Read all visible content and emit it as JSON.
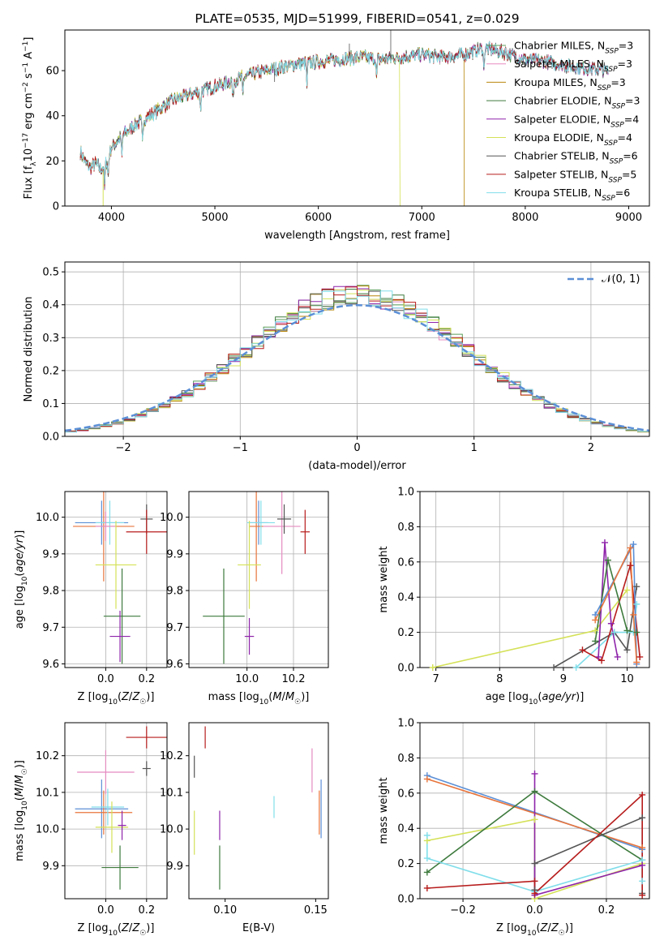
{
  "chart_data": [
    {
      "id": "spectrum",
      "type": "line",
      "title": "PLATE=0535, MJD=51999, FIBERID=0541, z=0.029",
      "xlabel": "wavelength [Angstrom, rest frame]",
      "ylabel": "Flux [f_λ 10^-17 erg cm^-2 s^-1 A^-1]",
      "xlim": [
        3550,
        9200
      ],
      "ylim": [
        0,
        78
      ],
      "xticks": [
        4000,
        5000,
        6000,
        7000,
        8000,
        9000
      ],
      "yticks": [
        0,
        20,
        40,
        60
      ],
      "grid": false,
      "legend_position": "right",
      "continuum": {
        "x": [
          3700,
          3750,
          3800,
          3850,
          3900,
          3950,
          4000,
          4100,
          4200,
          4300,
          4400,
          4500,
          4600,
          4800,
          5000,
          5200,
          5400,
          5600,
          5800,
          6000,
          6200,
          6400,
          6600,
          6800,
          7000,
          7200,
          7400,
          7600,
          7800,
          8000,
          8200,
          8400,
          8600,
          8800
        ],
        "y": [
          24,
          19,
          17,
          19,
          16,
          19,
          26,
          31,
          35,
          38,
          41,
          44,
          47,
          50,
          53,
          56,
          59,
          61,
          63,
          64,
          65,
          66,
          65,
          66,
          67,
          66,
          67,
          70,
          68,
          65,
          64,
          62,
          61,
          60
        ]
      },
      "series": [
        {
          "name": "Chabrier MILES, N_SSP=3",
          "label_main": "Chabrier MILES, N",
          "label_sub": "SSP",
          "label_tail": "=3",
          "color": "#5a9e5a",
          "cut": null
        },
        {
          "name": "Salpeter MILES, N_SSP=3",
          "label_main": "Salpeter MILES, N",
          "label_sub": "SSP",
          "label_tail": "=3",
          "color": "#e58bc0",
          "cut": null
        },
        {
          "name": "Kroupa MILES, N_SSP=3",
          "label_main": "Kroupa MILES, N",
          "label_sub": "SSP",
          "label_tail": "=3",
          "color": "#b8860b",
          "cut": 7410
        },
        {
          "name": "Chabrier ELODIE, N_SSP=3",
          "label_main": "Chabrier ELODIE, N",
          "label_sub": "SSP",
          "label_tail": "=3",
          "color": "#3d7a3d",
          "cut": null
        },
        {
          "name": "Salpeter ELODIE, N_SSP=4",
          "label_main": "Salpeter ELODIE, N",
          "label_sub": "SSP",
          "label_tail": "=4",
          "color": "#8e24aa",
          "cut": null
        },
        {
          "name": "Kroupa ELODIE, N_SSP=4",
          "label_main": "Kroupa ELODIE, N",
          "label_sub": "SSP",
          "label_tail": "=4",
          "color": "#d4e157",
          "cut": 6790
        },
        {
          "name": "Chabrier STELIB, N_SSP=6",
          "label_main": "Chabrier STELIB, N",
          "label_sub": "SSP",
          "label_tail": "=6",
          "color": "#555555",
          "cut": null
        },
        {
          "name": "Salpeter STELIB, N_SSP=5",
          "label_main": "Salpeter STELIB, N",
          "label_sub": "SSP",
          "label_tail": "=5",
          "color": "#b71c1c",
          "cut": null
        },
        {
          "name": "Kroupa STELIB, N_SSP=6",
          "label_main": "Kroupa STELIB, N",
          "label_sub": "SSP",
          "label_tail": "=6",
          "color": "#80deea",
          "cut": null
        }
      ]
    },
    {
      "id": "residuals",
      "type": "histogram",
      "xlabel": "(data-model)/error",
      "ylabel": "Normed distribution",
      "xlim": [
        -2.5,
        2.5
      ],
      "ylim": [
        0,
        0.53
      ],
      "xticks": [
        -2,
        -1,
        0,
        1,
        2
      ],
      "yticks": [
        0.0,
        0.1,
        0.2,
        0.3,
        0.4,
        0.5
      ],
      "grid": true,
      "legend_position": "top-right",
      "legend": "𝒩(0, 1)",
      "bin_width": 0.1,
      "colors": [
        "#5a9e5a",
        "#e58bc0",
        "#b8860b",
        "#3d7a3d",
        "#8e24aa",
        "#d4e157",
        "#555555",
        "#b71c1c",
        "#80deea"
      ],
      "normal_curve": {
        "mean": 0,
        "sigma": 1,
        "color": "#5b8fd6"
      }
    },
    {
      "id": "age-vs-Z",
      "type": "errorbar",
      "xlabel": "Z [log10(Z/Z☉)]",
      "ylabel": "age [log10(age/yr)]",
      "xlim": [
        -0.2,
        0.3
      ],
      "ylim": [
        9.59,
        10.07
      ],
      "xticks": [
        0.0,
        0.2
      ],
      "yticks": [
        9.6,
        9.7,
        9.8,
        9.9,
        10.0
      ],
      "grid": true,
      "points": [
        {
          "x": -0.02,
          "xerr": 0.13,
          "y": 9.985,
          "yerr": 0.06,
          "color": "#5b8fd6"
        },
        {
          "x": -0.01,
          "xerr": 0.15,
          "y": 9.975,
          "yerr": 0.15,
          "color": "#e8743b"
        },
        {
          "x": 0.02,
          "xerr": 0.07,
          "y": 9.985,
          "yerr": 0.06,
          "color": "#80deea"
        },
        {
          "x": 0.0,
          "xerr": 0.05,
          "y": 9.975,
          "yerr": 0.04,
          "color": "#e58bc0"
        },
        {
          "x": 0.05,
          "xerr": 0.1,
          "y": 9.87,
          "yerr": 0.12,
          "color": "#d4e157"
        },
        {
          "x": 0.08,
          "xerr": 0.09,
          "y": 9.73,
          "yerr": 0.13,
          "color": "#3d7a3d"
        },
        {
          "x": 0.07,
          "xerr": 0.05,
          "y": 9.675,
          "yerr": 0.07,
          "color": "#8e24aa"
        },
        {
          "x": 0.2,
          "xerr": 0.03,
          "y": 9.995,
          "yerr": 0.04,
          "color": "#555555"
        },
        {
          "x": 0.2,
          "xerr": 0.1,
          "y": 9.96,
          "yerr": 0.06,
          "color": "#b71c1c"
        }
      ]
    },
    {
      "id": "age-vs-mass",
      "type": "errorbar",
      "xlabel": "mass [log10(M/M☉)]",
      "ylabel": "",
      "xlim": [
        9.75,
        10.35
      ],
      "ylim": [
        9.59,
        10.07
      ],
      "xticks": [
        10.0,
        10.2
      ],
      "yticks": [
        9.6,
        9.7,
        9.8,
        9.9,
        10.0
      ],
      "grid": true,
      "points": [
        {
          "x": 10.05,
          "xerr": 0.04,
          "y": 9.985,
          "yerr": 0.06,
          "color": "#5b8fd6"
        },
        {
          "x": 10.04,
          "xerr": 0.03,
          "y": 9.975,
          "yerr": 0.15,
          "color": "#e8743b"
        },
        {
          "x": 10.06,
          "xerr": 0.06,
          "y": 9.985,
          "yerr": 0.06,
          "color": "#80deea"
        },
        {
          "x": 10.15,
          "xerr": 0.08,
          "y": 9.975,
          "yerr": 0.13,
          "color": "#e58bc0"
        },
        {
          "x": 10.01,
          "xerr": 0.05,
          "y": 9.87,
          "yerr": 0.12,
          "color": "#d4e157"
        },
        {
          "x": 9.9,
          "xerr": 0.09,
          "y": 9.73,
          "yerr": 0.13,
          "color": "#3d7a3d"
        },
        {
          "x": 10.01,
          "xerr": 0.02,
          "y": 9.675,
          "yerr": 0.05,
          "color": "#8e24aa"
        },
        {
          "x": 10.16,
          "xerr": 0.03,
          "y": 9.995,
          "yerr": 0.04,
          "color": "#555555"
        },
        {
          "x": 10.25,
          "xerr": 0.02,
          "y": 9.96,
          "yerr": 0.06,
          "color": "#b71c1c"
        }
      ]
    },
    {
      "id": "massweight-vs-age",
      "type": "line",
      "xlabel": "age [log10(age/yr)]",
      "ylabel": "mass weight",
      "xlim": [
        6.75,
        10.35
      ],
      "ylim": [
        0,
        1
      ],
      "xticks": [
        7,
        8,
        9,
        10
      ],
      "yticks": [
        0.0,
        0.2,
        0.4,
        0.6,
        0.8,
        1.0
      ],
      "grid": true,
      "series": [
        {
          "color": "#d4e157",
          "x": [
            6.95,
            9.5,
            10.0
          ],
          "y": [
            0.0,
            0.21,
            0.44
          ]
        },
        {
          "color": "#555555",
          "x": [
            8.85,
            9.8,
            10.0,
            10.15
          ],
          "y": [
            0.0,
            0.2,
            0.1,
            0.46
          ]
        },
        {
          "color": "#80deea",
          "x": [
            9.2,
            9.8,
            10.1,
            10.15
          ],
          "y": [
            0.0,
            0.2,
            0.2,
            0.36
          ]
        },
        {
          "color": "#b71c1c",
          "x": [
            9.3,
            9.6,
            10.05,
            10.2
          ],
          "y": [
            0.1,
            0.04,
            0.58,
            0.06
          ]
        },
        {
          "color": "#8e24aa",
          "x": [
            9.55,
            9.65,
            9.75,
            9.85
          ],
          "y": [
            0.06,
            0.71,
            0.25,
            0.06
          ]
        },
        {
          "color": "#3d7a3d",
          "x": [
            9.5,
            9.7,
            10.0,
            10.15
          ],
          "y": [
            0.15,
            0.61,
            0.21,
            0.2
          ]
        },
        {
          "color": "#5b8fd6",
          "x": [
            9.5,
            10.1,
            10.15
          ],
          "y": [
            0.3,
            0.7,
            0.02
          ]
        },
        {
          "color": "#e8743b",
          "x": [
            9.5,
            10.05,
            10.1,
            10.15
          ],
          "y": [
            0.27,
            0.68,
            0.3,
            0.03
          ]
        }
      ]
    },
    {
      "id": "mass-vs-Z",
      "type": "errorbar",
      "xlabel": "Z [log10(Z/Z☉)]",
      "ylabel": "mass [log10(M/M☉)]",
      "xlim": [
        -0.2,
        0.3
      ],
      "ylim": [
        9.81,
        10.29
      ],
      "xticks": [
        0.0,
        0.2
      ],
      "yticks": [
        9.9,
        10.0,
        10.1,
        10.2
      ],
      "grid": true,
      "points": [
        {
          "x": -0.02,
          "xerr": 0.13,
          "y": 10.055,
          "yerr": 0.08,
          "color": "#5b8fd6"
        },
        {
          "x": -0.01,
          "xerr": 0.14,
          "y": 10.045,
          "yerr": 0.06,
          "color": "#e8743b"
        },
        {
          "x": 0.01,
          "xerr": 0.08,
          "y": 10.06,
          "yerr": 0.05,
          "color": "#80deea"
        },
        {
          "x": 0.0,
          "xerr": 0.14,
          "y": 10.155,
          "yerr": 0.06,
          "color": "#e58bc0"
        },
        {
          "x": 0.03,
          "xerr": 0.08,
          "y": 10.005,
          "yerr": 0.07,
          "color": "#d4e157"
        },
        {
          "x": 0.07,
          "xerr": 0.09,
          "y": 9.895,
          "yerr": 0.06,
          "color": "#3d7a3d"
        },
        {
          "x": 0.08,
          "xerr": 0.02,
          "y": 10.01,
          "yerr": 0.04,
          "color": "#8e24aa"
        },
        {
          "x": 0.2,
          "xerr": 0.02,
          "y": 10.165,
          "yerr": 0.02,
          "color": "#555555"
        },
        {
          "x": 0.2,
          "xerr": 0.1,
          "y": 10.25,
          "yerr": 0.03,
          "color": "#b71c1c"
        }
      ]
    },
    {
      "id": "mass-vs-ebv",
      "type": "errorbar",
      "xlabel": "E(B-V)",
      "ylabel": "",
      "xlim": [
        0.08,
        0.157
      ],
      "ylim": [
        9.81,
        10.29
      ],
      "xticks": [
        0.1,
        0.15
      ],
      "yticks": [
        9.9,
        10.0,
        10.1,
        10.2
      ],
      "grid": false,
      "points": [
        {
          "x": 0.153,
          "xerr": 0,
          "y": 10.055,
          "yerr": 0.08,
          "color": "#5b8fd6"
        },
        {
          "x": 0.152,
          "xerr": 0,
          "y": 10.045,
          "yerr": 0.06,
          "color": "#e8743b"
        },
        {
          "x": 0.127,
          "xerr": 0,
          "y": 10.06,
          "yerr": 0.03,
          "color": "#80deea"
        },
        {
          "x": 0.148,
          "xerr": 0,
          "y": 10.16,
          "yerr": 0.06,
          "color": "#e58bc0"
        },
        {
          "x": 0.083,
          "xerr": 0,
          "y": 9.99,
          "yerr": 0.06,
          "color": "#d4e157"
        },
        {
          "x": 0.097,
          "xerr": 0,
          "y": 9.895,
          "yerr": 0.06,
          "color": "#3d7a3d"
        },
        {
          "x": 0.097,
          "xerr": 0,
          "y": 10.01,
          "yerr": 0.04,
          "color": "#8e24aa"
        },
        {
          "x": 0.083,
          "xerr": 0,
          "y": 10.17,
          "yerr": 0.03,
          "color": "#555555"
        },
        {
          "x": 0.089,
          "xerr": 0,
          "y": 10.25,
          "yerr": 0.03,
          "color": "#b71c1c"
        }
      ]
    },
    {
      "id": "massweight-vs-Z",
      "type": "line",
      "xlabel": "Z [log10(Z/Z☉)]",
      "ylabel": "mass weight",
      "xlim": [
        -0.32,
        0.32
      ],
      "ylim": [
        0,
        1
      ],
      "xticks": [
        -0.2,
        0.0,
        0.2
      ],
      "yticks": [
        0.0,
        0.2,
        0.4,
        0.6,
        0.8,
        1.0
      ],
      "grid": true,
      "series": [
        {
          "color": "#5b8fd6",
          "x": [
            -0.3,
            0.3
          ],
          "y": [
            0.7,
            0.28
          ]
        },
        {
          "color": "#e8743b",
          "x": [
            -0.3,
            0.3
          ],
          "y": [
            0.68,
            0.29
          ]
        },
        {
          "color": "#d4e157",
          "x": [
            -0.3,
            0.0,
            0.0,
            0.3
          ],
          "y": [
            0.33,
            0.45,
            0.0,
            0.2
          ]
        },
        {
          "color": "#3d7a3d",
          "x": [
            -0.3,
            0.0,
            0.3
          ],
          "y": [
            0.15,
            0.61,
            0.22
          ]
        },
        {
          "color": "#80deea",
          "x": [
            -0.3,
            -0.3,
            0.0,
            0.3,
            0.3
          ],
          "y": [
            0.36,
            0.23,
            0.04,
            0.22,
            0.1
          ]
        },
        {
          "color": "#555555",
          "x": [
            0.0,
            0.0,
            0.3,
            0.3
          ],
          "y": [
            0.05,
            0.2,
            0.46,
            0.03
          ]
        },
        {
          "color": "#8e24aa",
          "x": [
            0.0,
            0.0,
            0.3
          ],
          "y": [
            0.71,
            0.02,
            0.19
          ]
        },
        {
          "color": "#b71c1c",
          "x": [
            -0.3,
            0.0,
            0.0,
            0.3,
            0.3
          ],
          "y": [
            0.06,
            0.1,
            0.03,
            0.59,
            0.02
          ]
        }
      ]
    }
  ]
}
